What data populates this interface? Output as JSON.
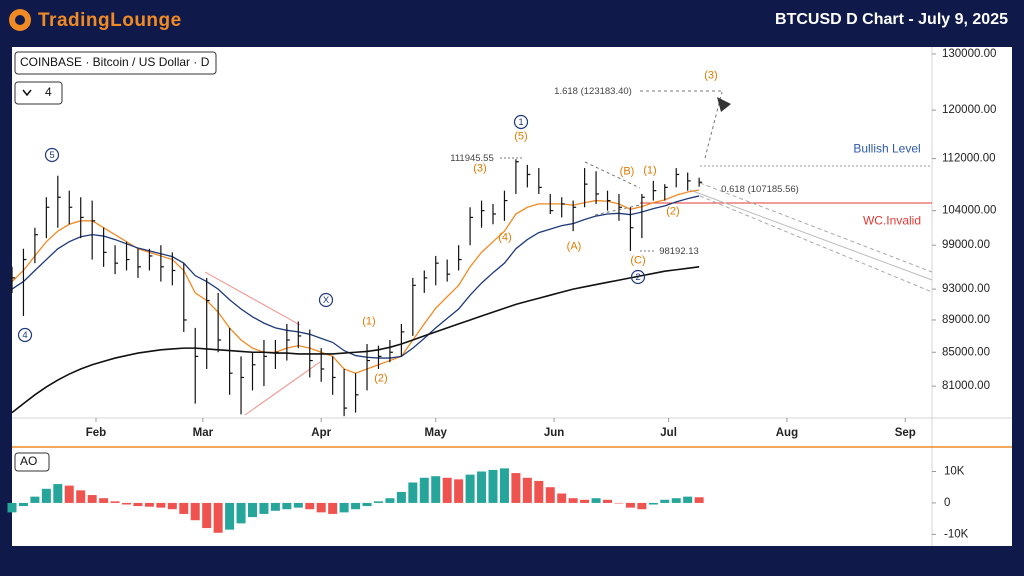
{
  "header": {
    "brand": "TradingLounge",
    "title": "BTCUSD D Chart - July 9, 2025",
    "symbol": "COINBASE · Bitcoin / US Dollar · D",
    "count": "4"
  },
  "chart_data": [
    {
      "type": "ohlc",
      "log": true,
      "x": [
        10,
        13,
        16,
        19,
        22,
        25,
        28,
        31,
        34,
        37,
        40,
        43,
        46,
        49,
        52,
        55,
        58,
        61,
        64,
        67,
        70,
        73,
        76,
        79,
        82,
        85,
        88,
        91,
        94,
        97,
        100,
        103,
        106,
        109,
        112,
        115,
        118,
        121,
        124,
        127,
        130,
        133,
        136,
        139,
        142,
        145,
        148,
        151,
        154,
        157,
        160,
        163,
        166,
        169,
        172,
        175,
        178,
        181,
        184,
        187,
        190
      ],
      "high": [
        96000,
        98500,
        101500,
        106000,
        109300,
        107000,
        106000,
        105500,
        101500,
        99000,
        99500,
        98500,
        98500,
        99000,
        98000,
        96500,
        88000,
        94500,
        92500,
        88000,
        84500,
        85000,
        86500,
        86500,
        88500,
        88800,
        87800,
        85500,
        84500,
        83000,
        82500,
        86000,
        85800,
        86500,
        88500,
        94500,
        95500,
        97500,
        97000,
        99000,
        104500,
        105500,
        105000,
        107000,
        111900,
        111000,
        110500,
        106500,
        106000,
        105500,
        110500,
        110000,
        107000,
        106500,
        104500,
        106500,
        108500,
        108000,
        110500,
        109800,
        109000
      ],
      "low": [
        92500,
        89500,
        96500,
        100000,
        101500,
        102000,
        100000,
        97000,
        96000,
        95000,
        95500,
        94500,
        95500,
        94000,
        93500,
        87500,
        79000,
        83000,
        85000,
        80000,
        77800,
        80500,
        81000,
        83000,
        84000,
        85500,
        82000,
        81500,
        80000,
        77600,
        78000,
        80500,
        83000,
        83800,
        84500,
        87000,
        92500,
        93500,
        94000,
        95500,
        99000,
        101500,
        102000,
        102500,
        106500,
        107500,
        106500,
        103500,
        103000,
        101000,
        104500,
        105000,
        104000,
        102500,
        98200,
        100000,
        105500,
        105500,
        107500,
        107000,
        107600
      ],
      "close": [
        94500,
        97000,
        100500,
        104500,
        106000,
        104500,
        103000,
        102500,
        98000,
        96500,
        97000,
        96000,
        97500,
        96000,
        95500,
        89000,
        84500,
        91500,
        86500,
        82500,
        82000,
        83500,
        84500,
        85000,
        86500,
        87000,
        84000,
        83000,
        82000,
        78500,
        80000,
        84000,
        84500,
        85000,
        87500,
        93500,
        94500,
        96500,
        95000,
        97000,
        103000,
        104000,
        103500,
        105500,
        111500,
        109500,
        107500,
        104000,
        105000,
        104500,
        108000,
        106500,
        105500,
        104500,
        101500,
        106000,
        107000,
        107500,
        109500,
        108500,
        108300
      ],
      "bar_color": "#111111",
      "lines": [
        {
          "color": "#f08a24",
          "values": [
            94000,
            95500,
            97500,
            99500,
            101000,
            102000,
            102500,
            102500,
            101500,
            100500,
            99500,
            98500,
            98000,
            97500,
            97000,
            95500,
            92500,
            91500,
            90000,
            88000,
            86500,
            85500,
            85000,
            85000,
            85500,
            85800,
            85500,
            85000,
            84500,
            83000,
            82500,
            83000,
            83500,
            84000,
            84500,
            86500,
            88500,
            90500,
            92000,
            93500,
            96000,
            98000,
            99500,
            101000,
            103500,
            104500,
            105000,
            105000,
            105000,
            104800,
            105200,
            105500,
            105400,
            105000,
            104200,
            104600,
            105200,
            105600,
            106300,
            106800,
            107100
          ]
        },
        {
          "color": "#1f3a7a",
          "values": [
            93000,
            94000,
            95500,
            97000,
            98500,
            99500,
            100200,
            100500,
            100300,
            99800,
            99200,
            98600,
            98200,
            97800,
            97400,
            96500,
            94800,
            94000,
            93000,
            91600,
            90400,
            89400,
            88600,
            88000,
            87700,
            87500,
            87200,
            86700,
            86200,
            85200,
            84600,
            84400,
            84300,
            84300,
            84500,
            85500,
            86700,
            88000,
            89200,
            90400,
            92200,
            93800,
            95200,
            96500,
            98500,
            99800,
            100800,
            101300,
            101800,
            102100,
            102700,
            103200,
            103500,
            103600,
            103400,
            103800,
            104300,
            104700,
            105300,
            105800,
            106200
          ]
        },
        {
          "color": "#111111",
          "values": [
            78000,
            79000,
            80000,
            80900,
            81700,
            82400,
            83000,
            83500,
            83900,
            84300,
            84600,
            84900,
            85100,
            85300,
            85400,
            85500,
            85500,
            85400,
            85300,
            85200,
            85100,
            85000,
            85000,
            84900,
            84900,
            84800,
            84800,
            84800,
            84800,
            84900,
            85000,
            85100,
            85300,
            85600,
            86000,
            86500,
            87000,
            87500,
            88000,
            88500,
            89000,
            89500,
            90000,
            90500,
            91000,
            91400,
            91800,
            92200,
            92600,
            93000,
            93300,
            93600,
            93900,
            94200,
            94500,
            94800,
            95100,
            95400,
            95600,
            95800,
            96000
          ]
        }
      ],
      "xlim": [
        10,
        251
      ],
      "xticks": [
        {
          "value": 32,
          "label": "Feb"
        },
        {
          "value": 60,
          "label": "Mar"
        },
        {
          "value": 91,
          "label": "Apr"
        },
        {
          "value": 121,
          "label": "May"
        },
        {
          "value": 152,
          "label": "Jun"
        },
        {
          "value": 182,
          "label": "Jul"
        },
        {
          "value": 213,
          "label": "Aug"
        },
        {
          "value": 244,
          "label": "Sep"
        }
      ],
      "ylim": [
        77400,
        131300
      ],
      "yticks": [
        {
          "value": 130000,
          "label": "130000.00"
        },
        {
          "value": 120000,
          "label": "120000.00"
        },
        {
          "value": 112000,
          "label": "112000.00"
        },
        {
          "value": 104000,
          "label": "104000.00"
        },
        {
          "value": 99000,
          "label": "99000.00"
        },
        {
          "value": 93000,
          "label": "93000.00"
        },
        {
          "value": 89000,
          "label": "89000.00"
        },
        {
          "value": 85000,
          "label": "85000.00"
        },
        {
          "value": 81000,
          "label": "81000.00"
        }
      ],
      "annotations": [
        "5",
        "4",
        "X",
        "1",
        "2",
        "(5)",
        "(3)",
        "(4)",
        "(1)",
        "(2)",
        "(A)",
        "(B)",
        "(C)",
        "(1)",
        "(2)",
        "(3)",
        "111945.55",
        "98192.13",
        "1.618 (123183.40)",
        "0.618 (107185.56)",
        "Bullish Level",
        "WC.Invalid"
      ]
    },
    {
      "type": "bar",
      "title": "AO",
      "x": [
        10,
        13,
        16,
        19,
        22,
        25,
        28,
        31,
        34,
        37,
        40,
        43,
        46,
        49,
        52,
        55,
        58,
        61,
        64,
        67,
        70,
        73,
        76,
        79,
        82,
        85,
        88,
        91,
        94,
        97,
        100,
        103,
        106,
        109,
        112,
        115,
        118,
        121,
        124,
        127,
        130,
        133,
        136,
        139,
        142,
        145,
        148,
        151,
        154,
        157,
        160,
        163,
        166,
        169,
        172,
        175,
        178,
        181,
        184,
        187,
        190
      ],
      "values": [
        -3000,
        -1000,
        2000,
        4500,
        6000,
        5500,
        4000,
        2500,
        1500,
        500,
        -500,
        -1000,
        -1200,
        -1500,
        -2000,
        -3500,
        -5500,
        -8000,
        -9500,
        -8500,
        -6500,
        -4500,
        -3500,
        -2500,
        -2000,
        -1500,
        -2000,
        -3000,
        -3500,
        -3000,
        -2000,
        -1000,
        500,
        1500,
        3500,
        6500,
        8000,
        8500,
        8000,
        7500,
        9000,
        10000,
        10500,
        11000,
        9500,
        8000,
        7000,
        5000,
        3000,
        1500,
        1000,
        1500,
        1000,
        0,
        -1500,
        -2000,
        -500,
        1000,
        1500,
        2000,
        1800
      ],
      "up_color": "#26a69a",
      "down_color": "#ef5350",
      "xlim": [
        10,
        251
      ],
      "ylim": [
        -13700,
        16200
      ],
      "yticks": [
        {
          "value": 10000,
          "label": "10K"
        },
        0,
        {
          "value": -10000,
          "label": "-10K"
        }
      ]
    }
  ]
}
